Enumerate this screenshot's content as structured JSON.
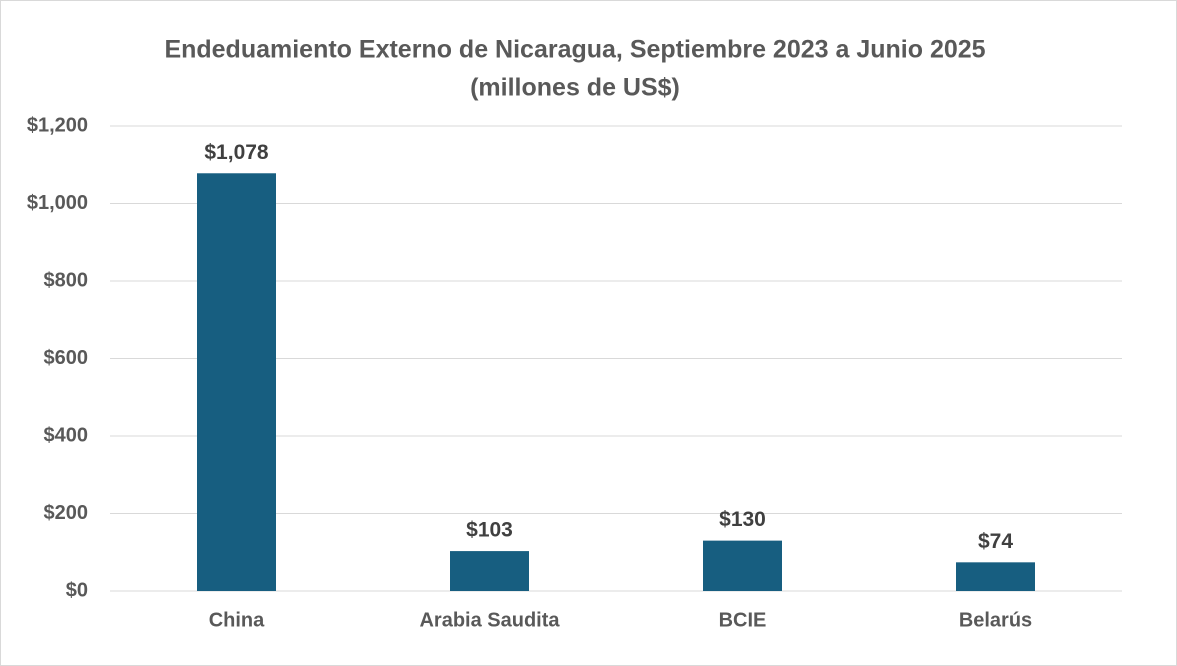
{
  "chart_data": {
    "type": "bar",
    "title": "Endeduamiento Externo de Nicaragua, Septiembre 2023 a Junio 2025",
    "subtitle": "(millones de US$)",
    "categories": [
      "China",
      "Arabia Saudita",
      "BCIE",
      "Belarús"
    ],
    "values": [
      1078,
      103,
      130,
      74
    ],
    "value_labels": [
      "$1,078",
      "$103",
      "$130",
      "$74"
    ],
    "color": "#175e80",
    "ylim": [
      0,
      1200
    ],
    "yticks": [
      {
        "value": 0,
        "label": "$0"
      },
      {
        "value": 200,
        "label": "$200"
      },
      {
        "value": 400,
        "label": "$400"
      },
      {
        "value": 600,
        "label": "$600"
      },
      {
        "value": 800,
        "label": "$800"
      },
      {
        "value": 1000,
        "label": "$1,000"
      },
      {
        "value": 1200,
        "label": "$1,200"
      }
    ],
    "grid": true
  }
}
